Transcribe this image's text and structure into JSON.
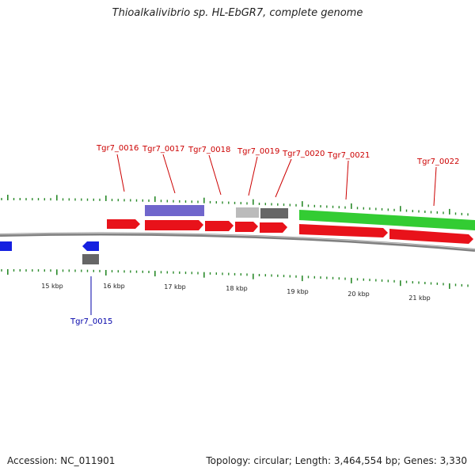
{
  "title": "Thioalkalivibrio sp. HL-EbGR7, complete genome",
  "footer": {
    "accession": "Accession: NC_011901",
    "topology": "Topology: circular; Length: 3,464,554 bp; Genes: 3,330"
  },
  "colors": {
    "cds_forward": "#e8121a",
    "cds_reverse": "#1520e0",
    "feature_purple": "#7066cc",
    "feature_green": "#33cc33",
    "feature_gray_light": "#bbbbbb",
    "feature_gray_dark": "#666666",
    "backbone": "#808080",
    "tick": "#2a8a2a",
    "label_forward": "#cc0000",
    "label_reverse": "#0000aa"
  },
  "scale_labels": [
    "15 kbp",
    "16 kbp",
    "17 kbp",
    "18 kbp",
    "19 kbp",
    "20 kbp",
    "21 kbp"
  ],
  "gene_labels": [
    {
      "text": "Tgr7_0015",
      "strand": "reverse"
    },
    {
      "text": "Tgr7_0016",
      "strand": "forward"
    },
    {
      "text": "Tgr7_0017",
      "strand": "forward"
    },
    {
      "text": "Tgr7_0018",
      "strand": "forward"
    },
    {
      "text": "Tgr7_0019",
      "strand": "forward"
    },
    {
      "text": "Tgr7_0020",
      "strand": "forward"
    },
    {
      "text": "Tgr7_0021",
      "strand": "forward"
    },
    {
      "text": "Tgr7_0022",
      "strand": "forward"
    }
  ]
}
